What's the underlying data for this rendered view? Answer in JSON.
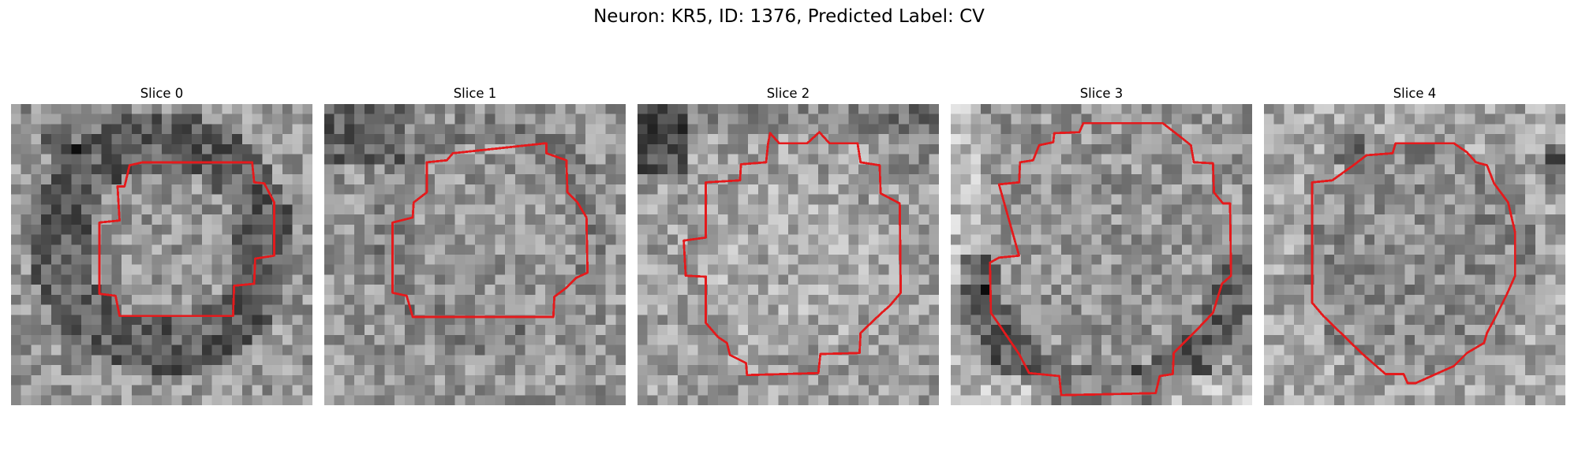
{
  "figure": {
    "title": "Neuron: KR5, ID: 1376, Predicted Label: CV"
  },
  "colors": {
    "background": "#ffffff",
    "contour": "#e41a1c",
    "colormap": "gray"
  },
  "panels": [
    {
      "title": "Slice 0",
      "grid_size": 30,
      "pattern": "dark ring of cells surrounding a mid-gray soma; dark patch upper-left",
      "roi_contour_color": "#e41a1c"
    },
    {
      "title": "Slice 1",
      "grid_size": 30,
      "pattern": "mostly uniform gray with dark speckles, darker upper-left corner",
      "roi_contour_color": "#e41a1c"
    },
    {
      "title": "Slice 2",
      "grid_size": 30,
      "pattern": "dark upper-left corner and top band; lighter interior",
      "roi_contour_color": "#e41a1c"
    },
    {
      "title": "Slice 3",
      "grid_size": 30,
      "pattern": "bright edges with dark crescent along the lower boundary",
      "roi_contour_color": "#e41a1c"
    },
    {
      "title": "Slice 4",
      "grid_size": 30,
      "pattern": "light background with darker soma and dark spots at right edge",
      "roi_contour_color": "#e41a1c"
    }
  ]
}
